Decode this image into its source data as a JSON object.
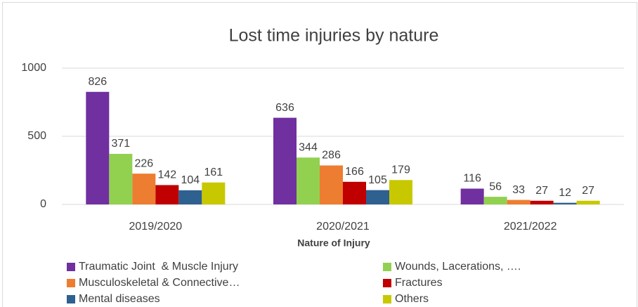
{
  "chart_data": {
    "type": "bar",
    "title": "Lost time injuries by nature",
    "x_label": "Nature of Injury",
    "categories": [
      "2019/2020",
      "2020/2021",
      "2021/2022"
    ],
    "series": [
      {
        "name": "Traumatic Joint  & Muscle Injury",
        "color": "#7030a0",
        "values": [
          826,
          636,
          116
        ]
      },
      {
        "name": "Wounds, Lacerations, ….",
        "color": "#92d050",
        "values": [
          371,
          344,
          56
        ]
      },
      {
        "name": "Musculoskeletal & Connective…",
        "color": "#ed7d31",
        "values": [
          226,
          286,
          33
        ]
      },
      {
        "name": "Fractures",
        "color": "#c00000",
        "values": [
          142,
          166,
          27
        ]
      },
      {
        "name": "Mental diseases",
        "color": "#2e6090",
        "values": [
          104,
          105,
          12
        ]
      },
      {
        "name": "Others",
        "color": "#c8c800",
        "values": [
          161,
          179,
          27
        ]
      }
    ],
    "ylim": [
      0,
      1000
    ],
    "yticks": [
      0,
      500,
      1000
    ],
    "grid": true
  }
}
